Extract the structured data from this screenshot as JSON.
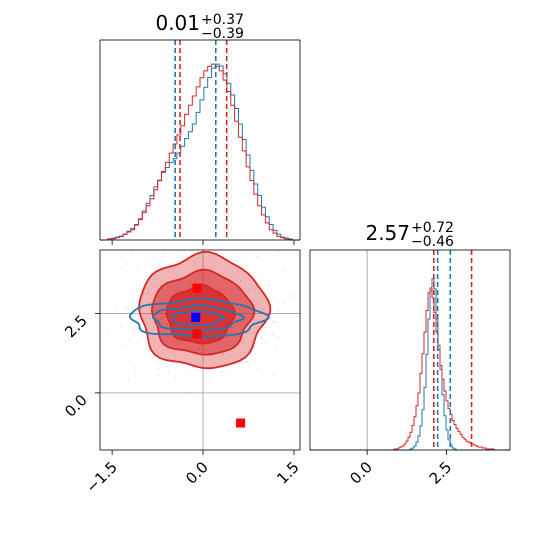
{
  "colors": {
    "blue": "#1f77b4",
    "red": "#d62728",
    "gray": "#b0b0b0"
  },
  "chart_data": {
    "type": "corner",
    "panels": [
      {
        "position": "top-left",
        "type": "histogram",
        "title": {
          "main": "0.01",
          "upper": "+0.37",
          "lower": "−0.39"
        },
        "xlim": [
          -1.7,
          1.6
        ],
        "quantiles_blue": [
          -0.46,
          0.21
        ],
        "quantiles_red": [
          -0.38,
          0.39
        ],
        "hist_blue": [
          0,
          0,
          1,
          2,
          3,
          4,
          6,
          9,
          12,
          16,
          22,
          30,
          38,
          46,
          55,
          62,
          70,
          75,
          80,
          84,
          90,
          97,
          105,
          112,
          120,
          132,
          145,
          158,
          168,
          178,
          182,
          180,
          172,
          162,
          150,
          136,
          120,
          104,
          88,
          72,
          58,
          46,
          34,
          24,
          16,
          10,
          6,
          3,
          2,
          1,
          0,
          0
        ],
        "hist_red": [
          0,
          0,
          1,
          1,
          2,
          3,
          5,
          7,
          9,
          13,
          18,
          24,
          30,
          36,
          44,
          52,
          60,
          68,
          76,
          84,
          92,
          100,
          110,
          118,
          126,
          134,
          142,
          148,
          152,
          154,
          152,
          148,
          140,
          130,
          118,
          104,
          90,
          78,
          64,
          52,
          40,
          30,
          22,
          15,
          9,
          6,
          3,
          2,
          1,
          0,
          0,
          0
        ]
      },
      {
        "position": "bottom-left",
        "type": "2d-contour",
        "xlim": [
          -1.7,
          1.6
        ],
        "ylim": [
          -1.8,
          4.5
        ],
        "xticks": [
          "−1.5",
          "0.0",
          "1.5"
        ],
        "yticks": [
          "0.0",
          "2.5"
        ],
        "truth_lines": {
          "x": 0.0,
          "y": 2.5
        },
        "blue_point": [
          -0.12,
          2.38
        ],
        "red_points": [
          [
            -0.1,
            3.3
          ],
          [
            -0.1,
            1.85
          ],
          [
            0.62,
            -0.95
          ]
        ],
        "red_contours": [
          {
            "cx": 0.0,
            "cy": 2.55,
            "rx": 1.05,
            "ry": 1.78,
            "fill_opacity": 0.35
          },
          {
            "cx": -0.02,
            "cy": 2.5,
            "rx": 0.82,
            "ry": 1.3,
            "fill_opacity": 0.55
          },
          {
            "cx": -0.05,
            "cy": 2.45,
            "rx": 0.55,
            "ry": 0.9,
            "fill_opacity": 0.8
          }
        ],
        "blue_contours": [
          {
            "cx": -0.1,
            "cy": 2.35,
            "rx": 1.1,
            "ry": 0.58
          },
          {
            "cx": -0.1,
            "cy": 2.35,
            "rx": 0.72,
            "ry": 0.38
          },
          {
            "cx": -0.1,
            "cy": 2.35,
            "rx": 0.42,
            "ry": 0.22
          }
        ]
      },
      {
        "position": "bottom-right",
        "type": "histogram",
        "title": {
          "main": "2.57",
          "upper": "+0.72",
          "lower": "−0.46"
        },
        "xlim": [
          -1.8,
          4.5
        ],
        "xticks": [
          "0.0",
          "2.5"
        ],
        "truth_line": 0.0,
        "quantiles_blue": [
          2.22,
          2.62
        ],
        "quantiles_red": [
          2.1,
          3.29
        ],
        "hist_blue": [
          0,
          0,
          0,
          0,
          0,
          0,
          0,
          0,
          0,
          0,
          0,
          0,
          0,
          0,
          0,
          0,
          0,
          0,
          0,
          0,
          0,
          0,
          0,
          0,
          0,
          0,
          0,
          0,
          0,
          0,
          0,
          0,
          0,
          0,
          0,
          0,
          0,
          0,
          0,
          0,
          0,
          0,
          0,
          0,
          0,
          0,
          0,
          0,
          0,
          0,
          1,
          2,
          4,
          8,
          14,
          24,
          40,
          62,
          95,
          130,
          158,
          170,
          160,
          130,
          104,
          80,
          55,
          34,
          20,
          10,
          5,
          2,
          1,
          0,
          0,
          0,
          0,
          0,
          0,
          0,
          0,
          0,
          0,
          0,
          0,
          0,
          0,
          0,
          0,
          0,
          0,
          0,
          0,
          0,
          0,
          0,
          0,
          0,
          0,
          0
        ],
        "hist_red": [
          0,
          0,
          0,
          0,
          0,
          0,
          0,
          0,
          0,
          0,
          0,
          0,
          0,
          0,
          0,
          0,
          0,
          0,
          0,
          0,
          0,
          0,
          0,
          0,
          0,
          0,
          0,
          0,
          0,
          0,
          0,
          0,
          0,
          0,
          0,
          0,
          0,
          0,
          0,
          0,
          0,
          0,
          1,
          1,
          2,
          3,
          4,
          6,
          9,
          13,
          18,
          25,
          34,
          45,
          58,
          78,
          98,
          120,
          142,
          160,
          165,
          155,
          140,
          120,
          102,
          86,
          72,
          60,
          50,
          42,
          36,
          30,
          26,
          22,
          19,
          16,
          13,
          11,
          9,
          8,
          7,
          6,
          5,
          4,
          3,
          3,
          2,
          2,
          1,
          1,
          1,
          1,
          0,
          0,
          0,
          0,
          0,
          0,
          0,
          0
        ]
      }
    ]
  }
}
